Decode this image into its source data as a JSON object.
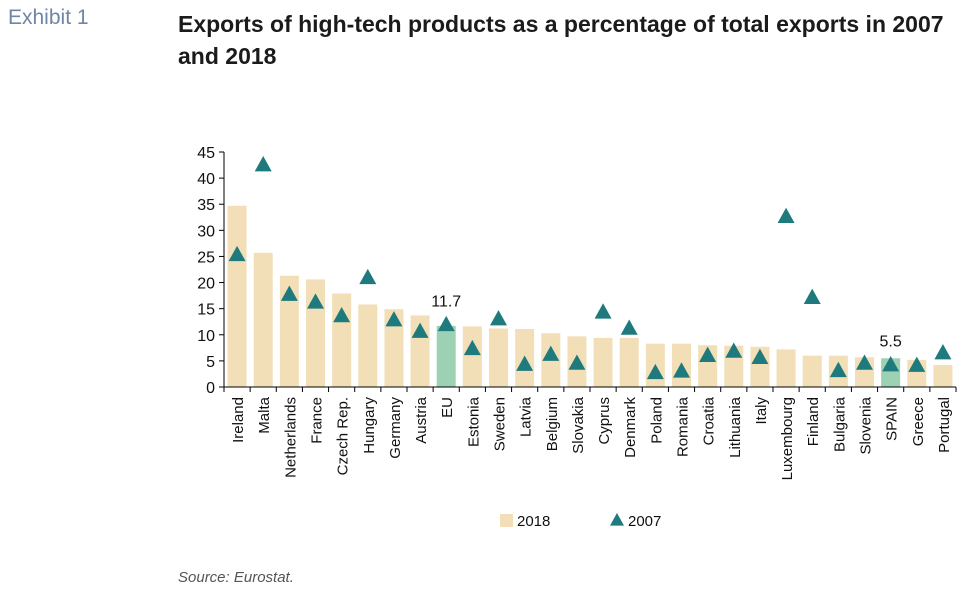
{
  "header": {
    "exhibit_label": "Exhibit 1",
    "title": "Exports of high-tech products as a percentage of total exports in 2007 and 2018"
  },
  "footer": {
    "source": "Source: Eurostat."
  },
  "colors": {
    "bar_default": "#f2dfb7",
    "bar_highlight": "#9dd1b4",
    "marker": "#1f7a7e",
    "axis": "#000000"
  },
  "chart_data": {
    "type": "bar",
    "title": "Exports of high-tech products as a percentage of total exports in 2007 and 2018",
    "xlabel": "",
    "ylabel": "",
    "ylim": [
      0,
      45
    ],
    "yticks": [
      0,
      5,
      10,
      15,
      20,
      25,
      30,
      35,
      40,
      45
    ],
    "grid": false,
    "legend_position": "bottom",
    "categories": [
      "Ireland",
      "Malta",
      "Netherlands",
      "France",
      "Czech Rep.",
      "Hungary",
      "Germany",
      "Austria",
      "EU",
      "Estonia",
      "Sweden",
      "Latvia",
      "Belgium",
      "Slovakia",
      "Cyprus",
      "Denmark",
      "Poland",
      "Romania",
      "Croatia",
      "Lithuania",
      "Italy",
      "Luxembourg",
      "Finland",
      "Bulgaria",
      "Slovenia",
      "SPAIN",
      "Greece",
      "Portugal"
    ],
    "highlight_categories": [
      "EU",
      "SPAIN"
    ],
    "series": [
      {
        "name": "2018",
        "kind": "bar",
        "values": [
          34.7,
          25.7,
          21.3,
          20.6,
          17.9,
          15.8,
          14.9,
          13.7,
          11.7,
          11.6,
          11.2,
          11.1,
          10.3,
          9.7,
          9.4,
          9.4,
          8.3,
          8.3,
          8.0,
          7.9,
          7.7,
          7.2,
          6.0,
          6.0,
          5.7,
          5.5,
          5.2,
          4.2
        ]
      },
      {
        "name": "2007",
        "kind": "marker",
        "values": [
          25.4,
          42.6,
          17.8,
          16.3,
          13.7,
          21.0,
          12.9,
          10.7,
          12.0,
          7.4,
          13.1,
          4.4,
          6.3,
          4.6,
          14.4,
          11.3,
          2.8,
          3.1,
          6.1,
          6.9,
          5.7,
          32.7,
          17.2,
          3.2,
          4.6,
          4.3,
          4.2,
          6.6
        ]
      }
    ],
    "annotations": [
      {
        "category": "EU",
        "text": "11.7"
      },
      {
        "category": "SPAIN",
        "text": "5.5"
      }
    ]
  }
}
